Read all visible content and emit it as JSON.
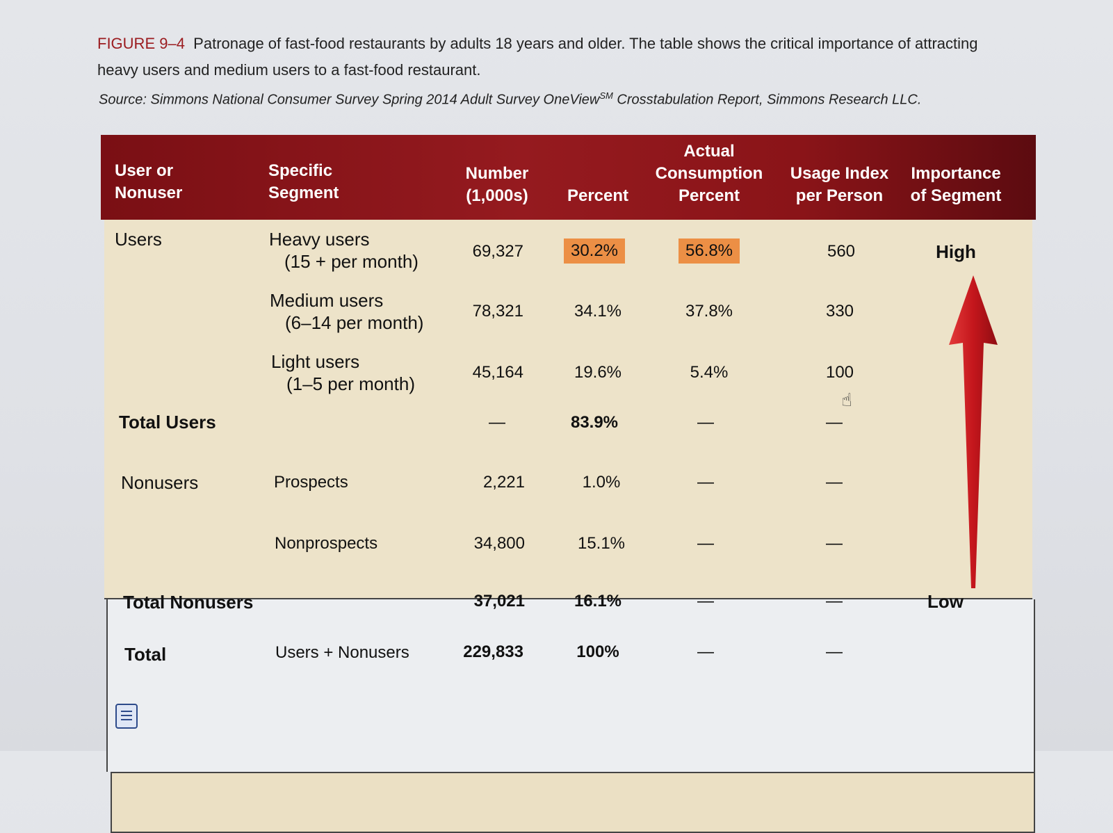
{
  "caption": {
    "figure_label": "FIGURE 9–4",
    "text": "Patronage of fast-food restaurants by adults 18 years and older. The table shows the critical importance of attracting heavy users and medium users to a fast-food restaurant.",
    "source_prefix": "Source: Simmons National Consumer Survey Spring 2014 Adult Survey OneView",
    "source_sup": "SM",
    "source_suffix": " Crosstabulation Report, Simmons Research LLC."
  },
  "headers": {
    "user_or_nonuser": [
      "User or",
      "Nonuser"
    ],
    "segment": [
      "Specific",
      "Segment"
    ],
    "number": [
      "Number",
      "(1,000s)"
    ],
    "percent": "Percent",
    "consumption": [
      "Actual",
      "Consumption",
      "Percent"
    ],
    "usage": [
      "Usage Index",
      "per Person"
    ],
    "importance": [
      "Importance",
      "of Segment"
    ]
  },
  "rows": {
    "heavy": {
      "group": "Users",
      "segment": [
        "Heavy users",
        "(15 + per month)"
      ],
      "number": "69,327",
      "percent": "30.2%",
      "consumption": "56.8%",
      "usage": "560"
    },
    "medium": {
      "segment": [
        "Medium users",
        "(6–14 per month)"
      ],
      "number": "78,321",
      "percent": "34.1%",
      "consumption": "37.8%",
      "usage": "330"
    },
    "light": {
      "segment": [
        "Light users",
        "(1–5 per month)"
      ],
      "number": "45,164",
      "percent": "19.6%",
      "consumption": "5.4%",
      "usage": "100"
    },
    "total_users": {
      "label": "Total Users",
      "number": "—",
      "percent": "83.9%",
      "consumption": "—",
      "usage": "—"
    },
    "prospects": {
      "group": "Nonusers",
      "segment": "Prospects",
      "number": "2,221",
      "percent": "1.0%",
      "consumption": "—",
      "usage": "—"
    },
    "nonprospects": {
      "segment": "Nonprospects",
      "number": "34,800",
      "percent": "15.1%",
      "consumption": "—",
      "usage": "—"
    },
    "total_nonusers": {
      "label": "Total Nonusers",
      "number": "37,021",
      "percent": "16.1%",
      "consumption": "—",
      "usage": "—"
    },
    "total": {
      "label": "Total",
      "segment": "Users + Nonusers",
      "number": "229,833",
      "percent": "100%",
      "consumption": "—",
      "usage": "—"
    }
  },
  "importance": {
    "high": "High",
    "low": "Low"
  },
  "colors": {
    "header": "#8a1418",
    "highlight": "#ec8f45",
    "users_band": "#ede3c9",
    "arrow": "#c4161c"
  },
  "icons": {
    "cursor": "hand-cursor-icon",
    "doc": "document-icon"
  }
}
